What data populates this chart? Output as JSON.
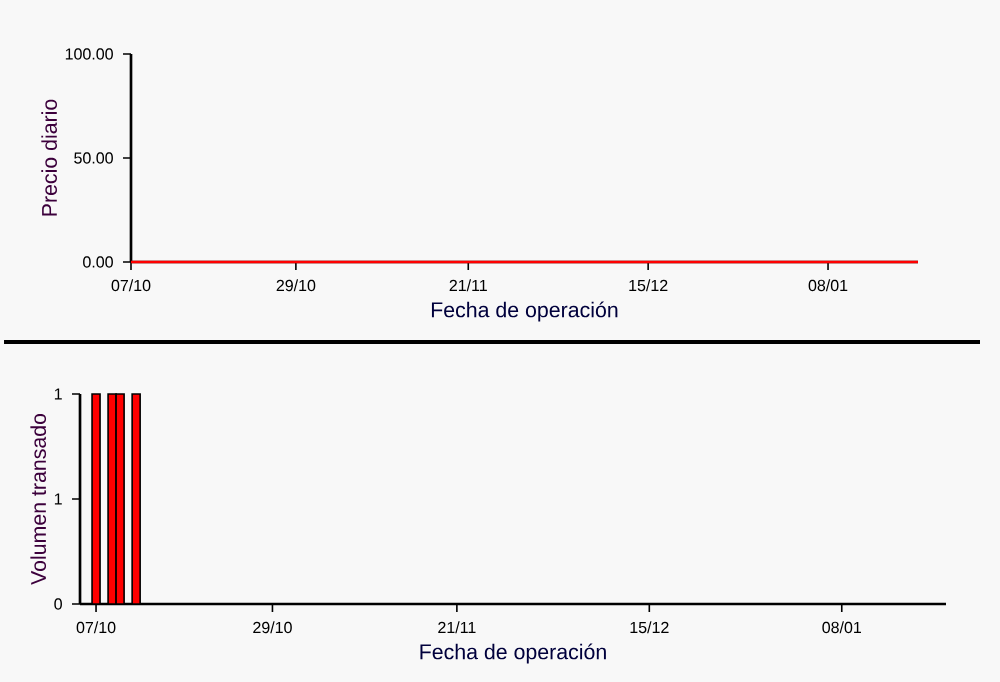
{
  "chart_data": [
    {
      "type": "line",
      "ylabel": "Precio diario",
      "xlabel": "Fecha de operación",
      "xlim": [
        "2000-10-07",
        "2001-01-20"
      ],
      "ylim": [
        0,
        100
      ],
      "xticks": [
        {
          "value": "2000-10-07",
          "label": "07/10"
        },
        {
          "value": "2000-10-29",
          "label": "29/10"
        },
        {
          "value": "2000-11-21",
          "label": "21/11"
        },
        {
          "value": "2000-12-15",
          "label": "15/12"
        },
        {
          "value": "2001-01-08",
          "label": "08/01"
        }
      ],
      "yticks": [
        {
          "value": 0,
          "label": "0.00"
        },
        {
          "value": 50,
          "label": "50.00"
        },
        {
          "value": 100,
          "label": "100.00"
        }
      ],
      "series": [
        {
          "color": "#ff0000",
          "x": [
            "2000-10-07",
            "2001-01-20"
          ],
          "values": [
            0,
            0
          ]
        }
      ]
    },
    {
      "type": "bar",
      "ylabel": "Volumen transado",
      "xlabel": "Fecha de operación",
      "xlim": [
        "2000-10-05",
        "2001-01-21"
      ],
      "ylim": [
        0,
        1
      ],
      "xticks": [
        {
          "value": "2000-10-07",
          "label": "07/10"
        },
        {
          "value": "2000-10-29",
          "label": "29/10"
        },
        {
          "value": "2000-11-21",
          "label": "21/11"
        },
        {
          "value": "2000-12-15",
          "label": "15/12"
        },
        {
          "value": "2001-01-08",
          "label": "08/01"
        }
      ],
      "yticks": [
        0,
        {
          "value": 0.5,
          "label": "1"
        },
        1
      ],
      "series": [
        {
          "color": "#ff0000",
          "x": [
            "2000-10-07",
            "2000-10-09",
            "2000-10-10",
            "2000-10-12"
          ],
          "values": [
            1,
            1,
            1,
            1
          ]
        }
      ]
    }
  ]
}
